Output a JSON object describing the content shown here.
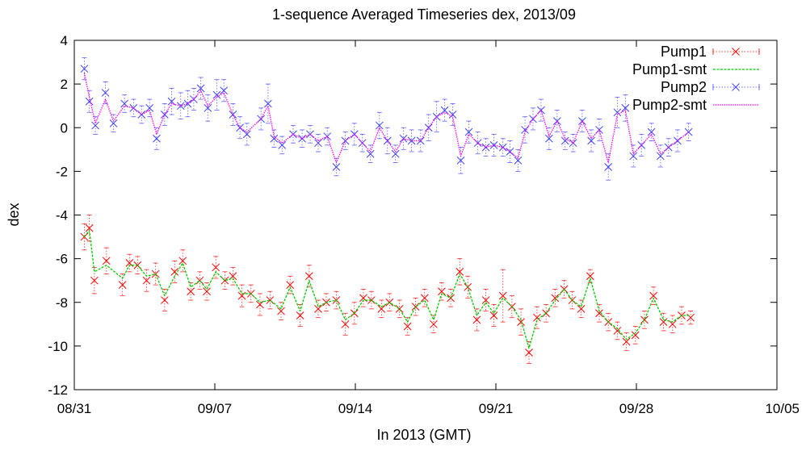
{
  "chart_data": {
    "type": "line",
    "title": "1-sequence Averaged Timeseries dex, 2013/09",
    "xlabel": "In 2013 (GMT)",
    "ylabel": "dex",
    "xlim": [
      "2013-08-31",
      "2013-10-05"
    ],
    "ylim": [
      -12,
      4
    ],
    "x_ticks": [
      "08/31",
      "09/07",
      "09/14",
      "09/21",
      "09/28",
      "10/05"
    ],
    "y_ticks": [
      "4",
      "2",
      "0",
      "-2",
      "-4",
      "-6",
      "-8",
      "-10",
      "-12"
    ],
    "grid": false,
    "legend_position": "top-right",
    "x_unit": "days since 2013-08-31 00:00 GMT",
    "series": [
      {
        "name": "Pump1",
        "style": "points-with-errorbars",
        "marker": "x",
        "color": "#ff0000",
        "x": [
          0.5,
          0.75,
          1.0,
          1.6,
          2.4,
          2.75,
          3.15,
          3.6,
          4.05,
          4.5,
          5.0,
          5.4,
          5.8,
          6.25,
          6.6,
          7.05,
          7.5,
          7.9,
          8.35,
          8.8,
          9.25,
          9.75,
          10.3,
          10.75,
          11.25,
          11.7,
          12.15,
          12.55,
          13.05,
          13.5,
          13.95,
          14.4,
          14.8,
          15.3,
          15.7,
          16.2,
          16.6,
          17.0,
          17.45,
          17.9,
          18.3,
          18.75,
          19.2,
          19.6,
          20.05,
          20.5,
          20.9,
          21.35,
          21.8,
          22.25,
          22.65,
          23.05,
          23.5,
          23.95,
          24.4,
          24.8,
          25.25,
          25.7,
          26.15,
          26.6,
          27.05,
          27.5,
          27.95,
          28.4,
          28.85,
          29.35,
          29.8,
          30.25,
          30.7
        ],
        "y": [
          -5.0,
          -4.6,
          -7.0,
          -6.1,
          -7.2,
          -6.2,
          -6.3,
          -7.0,
          -6.7,
          -7.9,
          -6.6,
          -6.1,
          -7.5,
          -7.0,
          -7.5,
          -6.4,
          -7.0,
          -6.8,
          -7.7,
          -7.6,
          -8.1,
          -7.9,
          -8.4,
          -7.2,
          -8.6,
          -6.8,
          -8.3,
          -8.0,
          -7.9,
          -9.0,
          -8.5,
          -7.8,
          -7.9,
          -8.3,
          -8.0,
          -8.3,
          -9.1,
          -8.2,
          -7.8,
          -9.0,
          -7.5,
          -7.8,
          -6.6,
          -7.3,
          -8.8,
          -7.9,
          -8.6,
          -7.7,
          -8.2,
          -8.9,
          -10.3,
          -8.7,
          -8.5,
          -7.8,
          -7.4,
          -7.9,
          -8.3,
          -6.8,
          -8.5,
          -8.9,
          -9.3,
          -9.8,
          -9.5,
          -8.8,
          -7.7,
          -8.9,
          -9.0,
          -8.6,
          -8.7
        ],
        "err": [
          0.6,
          0.6,
          0.6,
          0.6,
          0.5,
          0.4,
          0.4,
          0.5,
          0.5,
          0.5,
          0.5,
          0.5,
          0.4,
          0.4,
          0.4,
          0.5,
          0.4,
          0.4,
          0.5,
          0.4,
          0.5,
          0.4,
          0.4,
          0.4,
          0.5,
          0.5,
          0.4,
          0.4,
          0.4,
          0.5,
          0.5,
          0.4,
          0.4,
          0.4,
          0.4,
          0.4,
          0.4,
          0.4,
          0.4,
          0.4,
          0.4,
          0.4,
          0.6,
          0.5,
          0.5,
          0.5,
          0.5,
          1.2,
          0.5,
          0.6,
          0.5,
          0.5,
          0.4,
          0.4,
          0.4,
          0.4,
          0.4,
          0.3,
          0.4,
          0.4,
          0.4,
          0.4,
          0.4,
          0.4,
          0.4,
          0.4,
          0.4,
          0.4,
          0.3
        ]
      },
      {
        "name": "Pump1-smt",
        "style": "dashed-line",
        "color": "#00cc00",
        "x": [
          0.5,
          0.75,
          1.0,
          1.6,
          2.4,
          2.75,
          3.15,
          3.6,
          4.05,
          4.5,
          5.0,
          5.4,
          5.8,
          6.25,
          6.6,
          7.05,
          7.5,
          7.9,
          8.35,
          8.8,
          9.25,
          9.75,
          10.3,
          10.75,
          11.25,
          11.7,
          12.15,
          12.55,
          13.05,
          13.5,
          13.95,
          14.4,
          14.8,
          15.3,
          15.7,
          16.2,
          16.6,
          17.0,
          17.45,
          17.9,
          18.3,
          18.75,
          19.2,
          19.6,
          20.05,
          20.5,
          20.9,
          21.35,
          21.8,
          22.25,
          22.65,
          23.05,
          23.5,
          23.95,
          24.4,
          24.8,
          25.25,
          25.7,
          26.15,
          26.6,
          27.05,
          27.5,
          27.95,
          28.4,
          28.85,
          29.35,
          29.8,
          30.25,
          30.7
        ],
        "y": [
          -5.0,
          -4.7,
          -6.6,
          -6.3,
          -6.9,
          -6.3,
          -6.3,
          -6.8,
          -6.7,
          -7.7,
          -6.8,
          -6.2,
          -7.3,
          -7.0,
          -7.4,
          -6.6,
          -7.0,
          -6.9,
          -7.6,
          -7.6,
          -8.0,
          -7.9,
          -8.3,
          -7.3,
          -8.4,
          -7.0,
          -8.2,
          -8.0,
          -7.9,
          -8.8,
          -8.5,
          -7.9,
          -7.9,
          -8.2,
          -8.0,
          -8.3,
          -8.9,
          -8.2,
          -7.9,
          -8.8,
          -7.6,
          -7.8,
          -6.7,
          -7.3,
          -8.6,
          -8.0,
          -8.5,
          -7.8,
          -8.2,
          -8.8,
          -10.1,
          -8.8,
          -8.5,
          -7.9,
          -7.4,
          -7.9,
          -8.2,
          -6.9,
          -8.4,
          -8.9,
          -9.2,
          -9.7,
          -9.4,
          -8.8,
          -7.8,
          -8.8,
          -8.9,
          -8.6,
          -8.6
        ]
      },
      {
        "name": "Pump2",
        "style": "points-with-errorbars",
        "marker": "x",
        "color": "#4040ff",
        "x": [
          0.5,
          0.75,
          1.05,
          1.55,
          1.95,
          2.5,
          2.95,
          3.35,
          3.75,
          4.1,
          4.5,
          4.85,
          5.3,
          5.65,
          5.95,
          6.3,
          6.65,
          7.1,
          7.45,
          7.9,
          8.25,
          8.6,
          9.3,
          9.65,
          9.95,
          10.35,
          10.9,
          11.35,
          11.75,
          12.15,
          12.6,
          13.05,
          13.5,
          13.95,
          14.35,
          14.75,
          15.2,
          15.6,
          16.0,
          16.4,
          16.8,
          17.25,
          17.65,
          18.05,
          18.45,
          18.85,
          19.25,
          19.65,
          20.1,
          20.5,
          20.9,
          21.35,
          21.7,
          22.1,
          22.45,
          22.85,
          23.25,
          23.65,
          24.05,
          24.45,
          24.85,
          25.3,
          25.75,
          26.15,
          26.6,
          27.05,
          27.45,
          27.85,
          28.25,
          28.75,
          29.2,
          29.6,
          30.05,
          30.6
        ],
        "y": [
          2.7,
          1.2,
          0.1,
          1.6,
          0.2,
          1.1,
          0.9,
          0.6,
          0.9,
          -0.5,
          0.6,
          1.2,
          1.0,
          1.1,
          1.3,
          1.8,
          0.9,
          1.5,
          1.7,
          0.6,
          0.0,
          -0.3,
          0.4,
          1.1,
          -0.5,
          -0.8,
          -0.3,
          -0.5,
          -0.3,
          -0.7,
          -0.4,
          -1.8,
          -0.6,
          -0.3,
          -0.7,
          -1.2,
          0.1,
          -0.6,
          -1.2,
          -0.5,
          -0.6,
          -0.6,
          0.0,
          0.5,
          0.8,
          0.6,
          -1.5,
          -0.2,
          -0.7,
          -0.9,
          -0.8,
          -0.9,
          -1.1,
          -1.5,
          -0.1,
          0.4,
          0.8,
          -0.5,
          0.3,
          -0.6,
          -0.7,
          0.3,
          -0.6,
          -0.1,
          -1.8,
          0.7,
          0.9,
          -1.3,
          -0.8,
          -0.2,
          -1.3,
          -0.9,
          -0.6,
          -0.2
        ],
        "err": [
          0.5,
          0.5,
          0.4,
          0.5,
          0.4,
          0.4,
          0.4,
          0.4,
          0.4,
          0.5,
          0.5,
          0.6,
          0.6,
          0.6,
          0.5,
          0.5,
          0.6,
          0.7,
          0.5,
          0.5,
          0.5,
          0.5,
          0.5,
          0.9,
          0.4,
          0.4,
          0.4,
          0.4,
          0.4,
          0.4,
          0.4,
          0.4,
          0.4,
          0.5,
          0.4,
          0.4,
          0.6,
          0.6,
          0.4,
          0.5,
          0.5,
          0.5,
          0.6,
          0.7,
          0.5,
          0.5,
          0.6,
          0.5,
          0.5,
          0.4,
          0.5,
          0.4,
          0.5,
          0.5,
          0.6,
          0.5,
          0.5,
          0.5,
          0.5,
          0.4,
          0.4,
          0.5,
          0.5,
          0.5,
          0.6,
          0.7,
          0.6,
          0.5,
          0.5,
          0.4,
          0.5,
          0.4,
          0.5,
          0.4
        ]
      },
      {
        "name": "Pump2-smt",
        "style": "dotted-line",
        "color": "#ff00ff",
        "x": [
          0.5,
          0.75,
          1.05,
          1.55,
          1.95,
          2.5,
          2.95,
          3.35,
          3.75,
          4.1,
          4.5,
          4.85,
          5.3,
          5.65,
          5.95,
          6.3,
          6.65,
          7.1,
          7.45,
          7.9,
          8.25,
          8.6,
          9.3,
          9.65,
          9.95,
          10.35,
          10.9,
          11.35,
          11.75,
          12.15,
          12.6,
          13.05,
          13.5,
          13.95,
          14.35,
          14.75,
          15.2,
          15.6,
          16.0,
          16.4,
          16.8,
          17.25,
          17.65,
          18.05,
          18.45,
          18.85,
          19.25,
          19.65,
          20.1,
          20.5,
          20.9,
          21.35,
          21.7,
          22.1,
          22.45,
          22.85,
          23.25,
          23.65,
          24.05,
          24.45,
          24.85,
          25.3,
          25.75,
          26.15,
          26.6,
          27.05,
          27.45,
          27.85,
          28.25,
          28.75,
          29.2,
          29.6,
          30.05,
          30.6
        ],
        "y": [
          2.5,
          1.4,
          0.2,
          1.3,
          0.3,
          1.0,
          0.9,
          0.6,
          0.8,
          -0.3,
          0.6,
          1.1,
          1.0,
          1.1,
          1.3,
          1.7,
          1.0,
          1.4,
          1.6,
          0.6,
          0.0,
          -0.2,
          0.4,
          1.0,
          -0.4,
          -0.7,
          -0.3,
          -0.5,
          -0.3,
          -0.6,
          -0.4,
          -1.6,
          -0.6,
          -0.3,
          -0.7,
          -1.1,
          0.0,
          -0.6,
          -1.1,
          -0.5,
          -0.6,
          -0.6,
          0.0,
          0.5,
          0.7,
          0.5,
          -1.3,
          -0.3,
          -0.7,
          -0.9,
          -0.8,
          -0.9,
          -1.1,
          -1.4,
          -0.2,
          0.4,
          0.8,
          -0.4,
          0.3,
          -0.5,
          -0.7,
          0.3,
          -0.5,
          -0.1,
          -1.6,
          0.6,
          0.8,
          -1.2,
          -0.8,
          -0.3,
          -1.2,
          -0.9,
          -0.6,
          -0.2
        ]
      }
    ]
  }
}
